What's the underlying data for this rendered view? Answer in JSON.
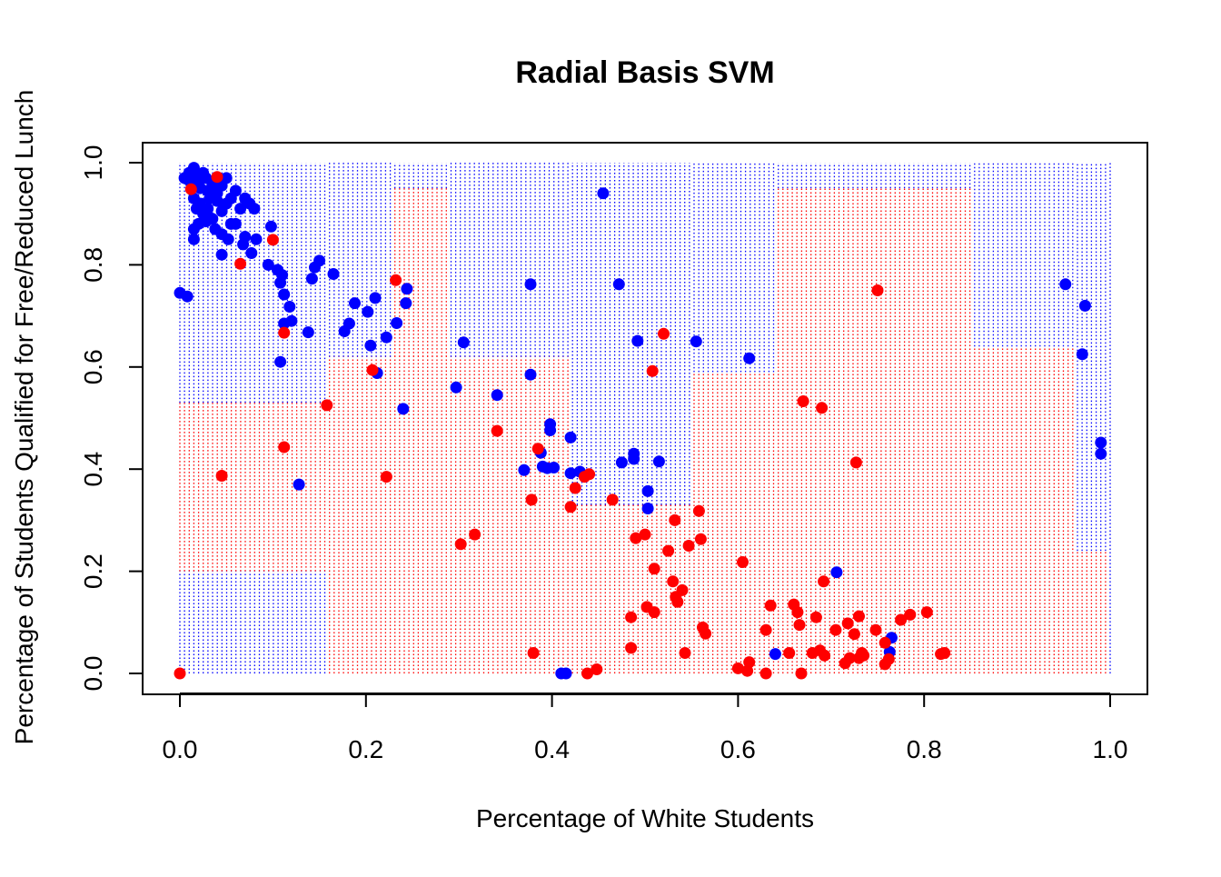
{
  "chart_data": {
    "type": "scatter",
    "title": "Radial Basis SVM",
    "xlabel": "Percentage of White Students",
    "ylabel": "Percentage of Students Qualified for Free/Reduced Lunch",
    "xlim": [
      0,
      1
    ],
    "ylim": [
      0,
      1
    ],
    "x_ticks": [
      "0.0",
      "0.2",
      "0.4",
      "0.6",
      "0.8",
      "1.0"
    ],
    "y_ticks": [
      "0.0",
      "0.2",
      "0.4",
      "0.6",
      "0.8",
      "1.0"
    ],
    "grid": false,
    "legend": "none",
    "colors": {
      "class_blue": "#0000ff",
      "class_red": "#ff0000"
    },
    "decision_region_background": {
      "description": "dotted vertical lines colored by predicted class over the [0,1]x[0,1] grid",
      "red_regions": [
        {
          "x": [
            0.0,
            0.16
          ],
          "y": [
            0.2,
            0.53
          ]
        },
        {
          "x": [
            0.16,
            0.42
          ],
          "y": [
            0.0,
            0.62
          ]
        },
        {
          "x": [
            0.23,
            0.29
          ],
          "y": [
            0.62,
            0.95
          ]
        },
        {
          "x": [
            0.42,
            0.55
          ],
          "y": [
            0.0,
            0.33
          ]
        },
        {
          "x": [
            0.55,
            0.64
          ],
          "y": [
            0.0,
            0.59
          ]
        },
        {
          "x": [
            0.64,
            0.85
          ],
          "y": [
            0.0,
            0.95
          ]
        },
        {
          "x": [
            0.85,
            0.96
          ],
          "y": [
            0.0,
            0.64
          ]
        },
        {
          "x": [
            0.96,
            1.0
          ],
          "y": [
            0.0,
            0.24
          ]
        }
      ]
    },
    "series": [
      {
        "color": "#0000ff",
        "points": [
          [
            0.0,
            0.745
          ],
          [
            0.008,
            0.738
          ],
          [
            0.005,
            0.97
          ],
          [
            0.01,
            0.98
          ],
          [
            0.012,
            0.96
          ],
          [
            0.015,
            0.99
          ],
          [
            0.018,
            0.975
          ],
          [
            0.02,
            0.96
          ],
          [
            0.022,
            0.95
          ],
          [
            0.025,
            0.98
          ],
          [
            0.028,
            0.97
          ],
          [
            0.03,
            0.945
          ],
          [
            0.035,
            0.96
          ],
          [
            0.032,
            0.93
          ],
          [
            0.038,
            0.95
          ],
          [
            0.04,
            0.94
          ],
          [
            0.045,
            0.955
          ],
          [
            0.05,
            0.97
          ],
          [
            0.055,
            0.93
          ],
          [
            0.06,
            0.945
          ],
          [
            0.015,
            0.93
          ],
          [
            0.018,
            0.91
          ],
          [
            0.022,
            0.92
          ],
          [
            0.025,
            0.9
          ],
          [
            0.03,
            0.91
          ],
          [
            0.035,
            0.89
          ],
          [
            0.04,
            0.925
          ],
          [
            0.045,
            0.905
          ],
          [
            0.05,
            0.92
          ],
          [
            0.055,
            0.88
          ],
          [
            0.065,
            0.91
          ],
          [
            0.07,
            0.93
          ],
          [
            0.075,
            0.92
          ],
          [
            0.08,
            0.91
          ],
          [
            0.02,
            0.88
          ],
          [
            0.028,
            0.885
          ],
          [
            0.038,
            0.87
          ],
          [
            0.045,
            0.86
          ],
          [
            0.052,
            0.85
          ],
          [
            0.06,
            0.88
          ],
          [
            0.068,
            0.84
          ],
          [
            0.07,
            0.855
          ],
          [
            0.082,
            0.85
          ],
          [
            0.015,
            0.87
          ],
          [
            0.015,
            0.85
          ],
          [
            0.045,
            0.82
          ],
          [
            0.077,
            0.823
          ],
          [
            0.098,
            0.875
          ],
          [
            0.095,
            0.8
          ],
          [
            0.105,
            0.79
          ],
          [
            0.11,
            0.78
          ],
          [
            0.108,
            0.765
          ],
          [
            0.112,
            0.742
          ],
          [
            0.118,
            0.718
          ],
          [
            0.12,
            0.69
          ],
          [
            0.112,
            0.685
          ],
          [
            0.108,
            0.61
          ],
          [
            0.128,
            0.37
          ],
          [
            0.138,
            0.668
          ],
          [
            0.142,
            0.773
          ],
          [
            0.145,
            0.795
          ],
          [
            0.15,
            0.808
          ],
          [
            0.165,
            0.782
          ],
          [
            0.177,
            0.67
          ],
          [
            0.182,
            0.685
          ],
          [
            0.188,
            0.725
          ],
          [
            0.202,
            0.708
          ],
          [
            0.205,
            0.642
          ],
          [
            0.21,
            0.735
          ],
          [
            0.212,
            0.588
          ],
          [
            0.222,
            0.658
          ],
          [
            0.233,
            0.686
          ],
          [
            0.24,
            0.518
          ],
          [
            0.243,
            0.725
          ],
          [
            0.244,
            0.753
          ],
          [
            0.297,
            0.56
          ],
          [
            0.305,
            0.648
          ],
          [
            0.341,
            0.545
          ],
          [
            0.37,
            0.398
          ],
          [
            0.377,
            0.762
          ],
          [
            0.377,
            0.585
          ],
          [
            0.388,
            0.432
          ],
          [
            0.39,
            0.405
          ],
          [
            0.395,
            0.402
          ],
          [
            0.398,
            0.488
          ],
          [
            0.398,
            0.476
          ],
          [
            0.402,
            0.403
          ],
          [
            0.41,
            0.0
          ],
          [
            0.415,
            0.0
          ],
          [
            0.42,
            0.462
          ],
          [
            0.42,
            0.392
          ],
          [
            0.43,
            0.395
          ],
          [
            0.455,
            0.94
          ],
          [
            0.472,
            0.762
          ],
          [
            0.475,
            0.413
          ],
          [
            0.488,
            0.42
          ],
          [
            0.488,
            0.43
          ],
          [
            0.492,
            0.651
          ],
          [
            0.503,
            0.357
          ],
          [
            0.503,
            0.323
          ],
          [
            0.515,
            0.415
          ],
          [
            0.555,
            0.65
          ],
          [
            0.612,
            0.617
          ],
          [
            0.64,
            0.038
          ],
          [
            0.706,
            0.198
          ],
          [
            0.763,
            0.042
          ],
          [
            0.765,
            0.07
          ],
          [
            0.952,
            0.762
          ],
          [
            0.97,
            0.625
          ],
          [
            0.973,
            0.72
          ],
          [
            0.99,
            0.452
          ],
          [
            0.99,
            0.43
          ]
        ]
      },
      {
        "color": "#ff0000",
        "points": [
          [
            0.0,
            0.0
          ],
          [
            0.012,
            0.948
          ],
          [
            0.04,
            0.972
          ],
          [
            0.045,
            0.387
          ],
          [
            0.065,
            0.802
          ],
          [
            0.1,
            0.849
          ],
          [
            0.112,
            0.667
          ],
          [
            0.112,
            0.443
          ],
          [
            0.158,
            0.525
          ],
          [
            0.222,
            0.385
          ],
          [
            0.232,
            0.77
          ],
          [
            0.207,
            0.594
          ],
          [
            0.302,
            0.253
          ],
          [
            0.317,
            0.272
          ],
          [
            0.341,
            0.475
          ],
          [
            0.378,
            0.34
          ],
          [
            0.38,
            0.04
          ],
          [
            0.385,
            0.44
          ],
          [
            0.42,
            0.326
          ],
          [
            0.425,
            0.363
          ],
          [
            0.435,
            0.385
          ],
          [
            0.44,
            0.39
          ],
          [
            0.438,
            0.0
          ],
          [
            0.448,
            0.008
          ],
          [
            0.465,
            0.34
          ],
          [
            0.485,
            0.11
          ],
          [
            0.485,
            0.05
          ],
          [
            0.49,
            0.265
          ],
          [
            0.5,
            0.272
          ],
          [
            0.502,
            0.13
          ],
          [
            0.508,
            0.592
          ],
          [
            0.51,
            0.205
          ],
          [
            0.51,
            0.12
          ],
          [
            0.52,
            0.665
          ],
          [
            0.525,
            0.24
          ],
          [
            0.53,
            0.18
          ],
          [
            0.532,
            0.3
          ],
          [
            0.533,
            0.15
          ],
          [
            0.535,
            0.14
          ],
          [
            0.54,
            0.163
          ],
          [
            0.543,
            0.04
          ],
          [
            0.547,
            0.25
          ],
          [
            0.558,
            0.318
          ],
          [
            0.56,
            0.263
          ],
          [
            0.562,
            0.09
          ],
          [
            0.565,
            0.078
          ],
          [
            0.6,
            0.01
          ],
          [
            0.605,
            0.218
          ],
          [
            0.61,
            0.005
          ],
          [
            0.612,
            0.022
          ],
          [
            0.63,
            0.085
          ],
          [
            0.63,
            0.0
          ],
          [
            0.635,
            0.133
          ],
          [
            0.655,
            0.04
          ],
          [
            0.66,
            0.135
          ],
          [
            0.664,
            0.12
          ],
          [
            0.666,
            0.095
          ],
          [
            0.668,
            0.0
          ],
          [
            0.67,
            0.533
          ],
          [
            0.68,
            0.04
          ],
          [
            0.684,
            0.11
          ],
          [
            0.688,
            0.045
          ],
          [
            0.69,
            0.52
          ],
          [
            0.693,
            0.035
          ],
          [
            0.692,
            0.18
          ],
          [
            0.705,
            0.085
          ],
          [
            0.715,
            0.02
          ],
          [
            0.718,
            0.098
          ],
          [
            0.72,
            0.03
          ],
          [
            0.725,
            0.077
          ],
          [
            0.727,
            0.413
          ],
          [
            0.73,
            0.03
          ],
          [
            0.73,
            0.112
          ],
          [
            0.733,
            0.04
          ],
          [
            0.735,
            0.035
          ],
          [
            0.748,
            0.085
          ],
          [
            0.75,
            0.75
          ],
          [
            0.758,
            0.018
          ],
          [
            0.758,
            0.06
          ],
          [
            0.762,
            0.028
          ],
          [
            0.775,
            0.105
          ],
          [
            0.785,
            0.115
          ],
          [
            0.803,
            0.12
          ],
          [
            0.818,
            0.038
          ],
          [
            0.822,
            0.04
          ]
        ]
      }
    ]
  }
}
